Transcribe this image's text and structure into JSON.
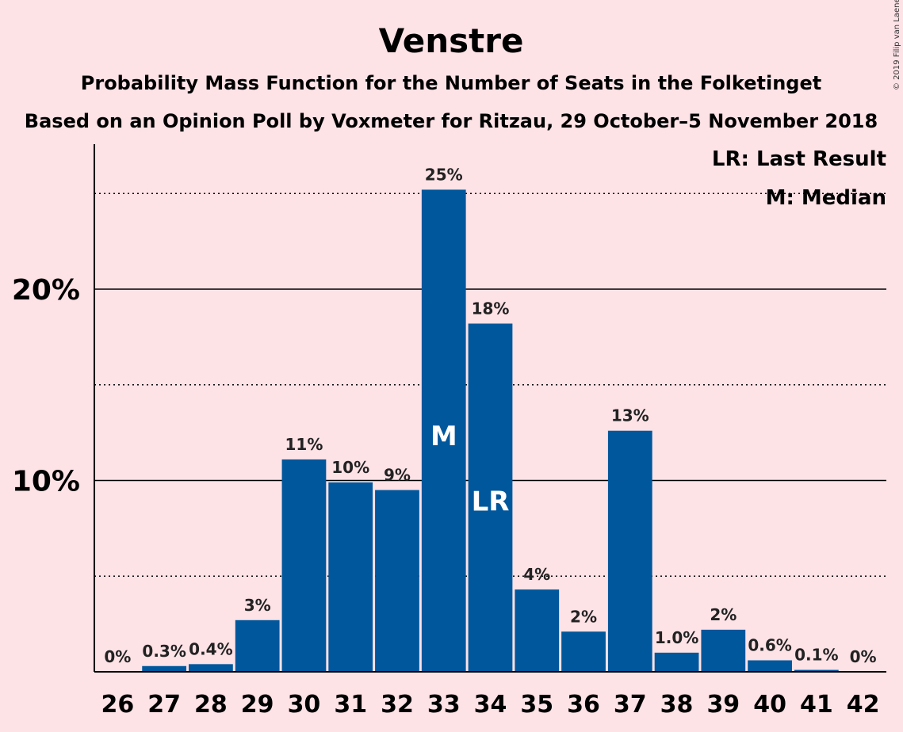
{
  "chart_data": {
    "type": "bar",
    "title": "Venstre",
    "subtitle": "Probability Mass Function for the Number of Seats in the Folketinget",
    "subtitle2": "Based on an Opinion Poll by Voxmeter for Ritzau, 29 October–5 November 2018",
    "copyright": "© 2019 Filip van Laenen",
    "categories": [
      "26",
      "27",
      "28",
      "29",
      "30",
      "31",
      "32",
      "33",
      "34",
      "35",
      "36",
      "37",
      "38",
      "39",
      "40",
      "41",
      "42"
    ],
    "values": [
      0.0,
      0.3,
      0.4,
      2.7,
      11.1,
      9.9,
      9.5,
      25.2,
      18.2,
      4.3,
      2.1,
      12.6,
      1.0,
      2.2,
      0.6,
      0.1,
      0.0
    ],
    "value_labels": [
      "0%",
      "0.3%",
      "0.4%",
      "3%",
      "11%",
      "10%",
      "9%",
      "25%",
      "18%",
      "4%",
      "2%",
      "13%",
      "1.0%",
      "2%",
      "0.6%",
      "0.1%",
      "0%"
    ],
    "ytick_values": [
      10,
      20
    ],
    "ytick_labels": [
      "10%",
      "20%"
    ],
    "ylim": [
      0,
      27.5
    ],
    "minor_grid": [
      5,
      15,
      25
    ],
    "major_grid": [
      10,
      20
    ],
    "median_seat": "33",
    "median_mark": "M",
    "last_result_seat": "34",
    "last_result_mark": "LR",
    "legend": [
      "LR: Last Result",
      "M: Median"
    ],
    "legend_position": "top-right",
    "bar_color": "#00579C"
  }
}
